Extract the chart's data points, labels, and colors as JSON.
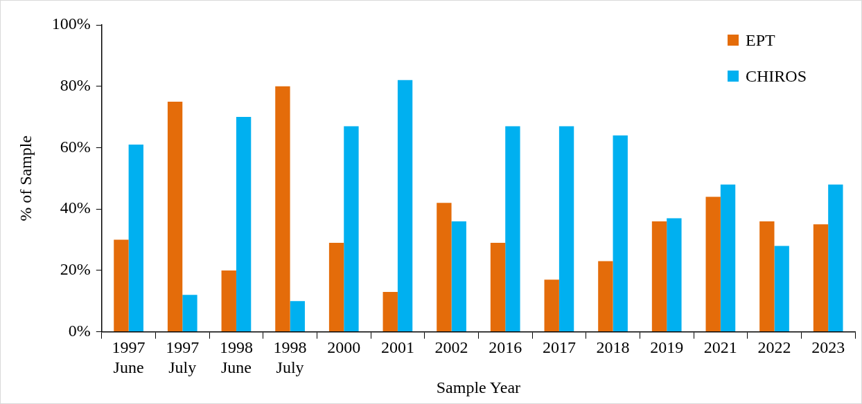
{
  "chart_data": {
    "type": "bar",
    "xlabel": "Sample Year",
    "ylabel": "% of Sample",
    "categories": [
      "1997\nJune",
      "1997\nJuly",
      "1998\nJune",
      "1998\nJuly",
      "2000",
      "2001",
      "2002",
      "2016",
      "2017",
      "2018",
      "2019",
      "2021",
      "2022",
      "2023"
    ],
    "series": [
      {
        "name": "EPT",
        "color": "#e46c0a",
        "values": [
          30,
          75,
          20,
          80,
          29,
          13,
          42,
          29,
          17,
          23,
          36,
          44,
          36,
          35
        ]
      },
      {
        "name": "CHIROS",
        "color": "#00b0f0",
        "values": [
          61,
          12,
          70,
          10,
          67,
          82,
          36,
          67,
          67,
          64,
          37,
          48,
          28,
          48
        ]
      }
    ],
    "ylim": [
      0,
      100
    ],
    "yticks": [
      {
        "value": 0,
        "label": "0%"
      },
      {
        "value": 20,
        "label": "20%"
      },
      {
        "value": 40,
        "label": "40%"
      },
      {
        "value": 60,
        "label": "60%"
      },
      {
        "value": 80,
        "label": "80%"
      },
      {
        "value": 100,
        "label": "100%"
      }
    ],
    "grid": false,
    "legend": "top right"
  }
}
